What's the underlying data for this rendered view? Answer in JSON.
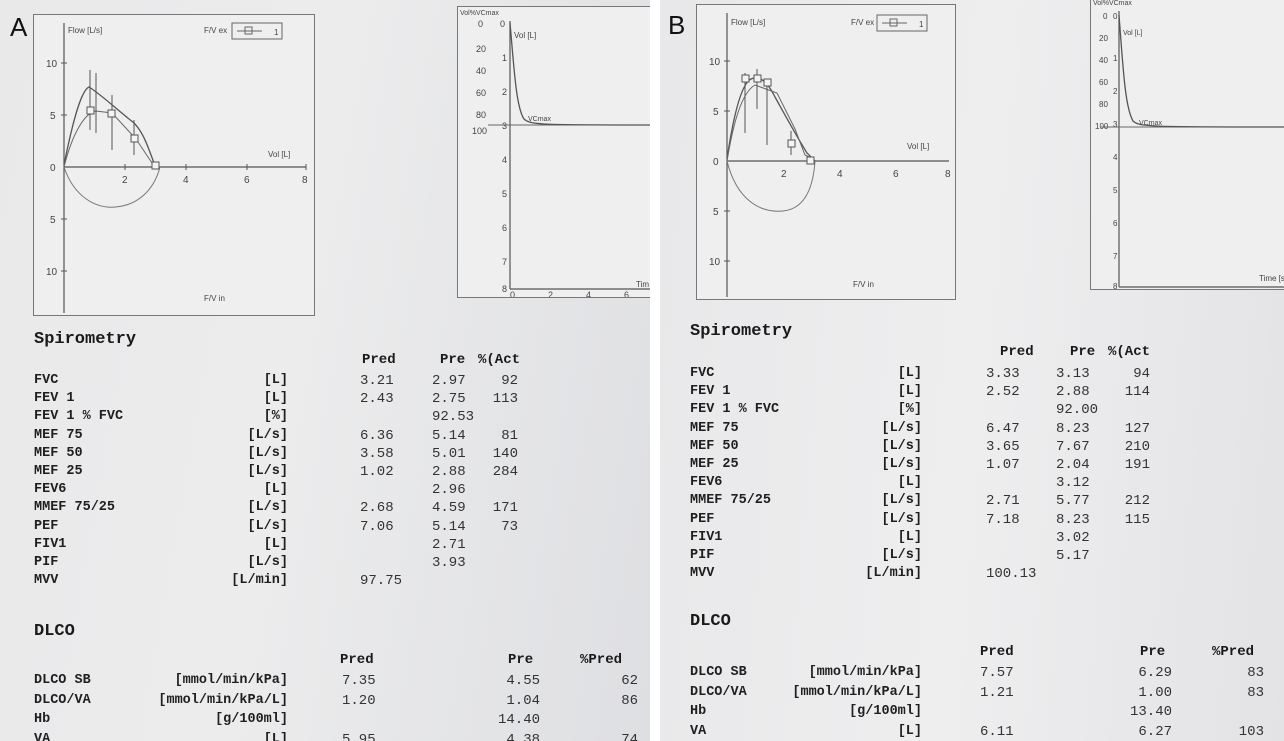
{
  "panels": [
    {
      "letter": "A",
      "chart_labels": {
        "flow": "Flow [L/s]",
        "legend": "F/V ex",
        "legend_series": "1",
        "vol": "Vol [L]",
        "fv_in": "F/V in",
        "volpct": "Vol%VCmax",
        "vol_right": "Vol [L]",
        "vcmax": "VCmax",
        "time": "Tim"
      },
      "fv_yticks": [
        "10",
        "5",
        "0",
        "5",
        "10"
      ],
      "fv_xticks": [
        "2",
        "4",
        "6",
        "8"
      ],
      "vt_pct_ticks": [
        "0",
        "20",
        "40",
        "60",
        "80",
        "100"
      ],
      "vt_vol_ticks": [
        "0",
        "1",
        "2",
        "3",
        "4",
        "5",
        "6",
        "7",
        "8"
      ],
      "vt_time_ticks": [
        "0",
        "2",
        "4",
        "6"
      ],
      "spiro": {
        "heading": "Spirometry",
        "headers": {
          "pred": "Pred",
          "pre": "Pre",
          "act": "%(Act"
        },
        "rows": [
          {
            "name": "FVC",
            "unit": "[L]",
            "pred": "3.21",
            "pre": "2.97",
            "act": "92"
          },
          {
            "name": "FEV 1",
            "unit": "[L]",
            "pred": "2.43",
            "pre": "2.75",
            "act": "113"
          },
          {
            "name": "FEV 1 % FVC",
            "unit": "[%]",
            "pred": "",
            "pre": "92.53",
            "act": ""
          },
          {
            "name": "MEF 75",
            "unit": "[L/s]",
            "pred": "6.36",
            "pre": "5.14",
            "act": "81"
          },
          {
            "name": "MEF 50",
            "unit": "[L/s]",
            "pred": "3.58",
            "pre": "5.01",
            "act": "140"
          },
          {
            "name": "MEF 25",
            "unit": "[L/s]",
            "pred": "1.02",
            "pre": "2.88",
            "act": "284"
          },
          {
            "name": "FEV6",
            "unit": "[L]",
            "pred": "",
            "pre": "2.96",
            "act": ""
          },
          {
            "name": "MMEF 75/25",
            "unit": "[L/s]",
            "pred": "2.68",
            "pre": "4.59",
            "act": "171"
          },
          {
            "name": "PEF",
            "unit": "[L/s]",
            "pred": "7.06",
            "pre": "5.14",
            "act": "73"
          },
          {
            "name": "FIV1",
            "unit": "[L]",
            "pred": "",
            "pre": "2.71",
            "act": ""
          },
          {
            "name": "PIF",
            "unit": "[L/s]",
            "pred": "",
            "pre": "3.93",
            "act": ""
          },
          {
            "name": "MVV",
            "unit": "[L/min]",
            "pred": "97.75",
            "pre": "",
            "act": ""
          }
        ]
      },
      "dlco": {
        "heading": "DLCO",
        "headers": {
          "pred": "Pred",
          "pre": "Pre",
          "pct": "%Pred"
        },
        "rows": [
          {
            "name": "DLCO SB",
            "unit": "[mmol/min/kPa]",
            "pred": "7.35",
            "pre": "4.55",
            "pct": "62"
          },
          {
            "name": "DLCO/VA",
            "unit": "[mmol/min/kPa/L]",
            "pred": "1.20",
            "pre": "1.04",
            "pct": "86"
          },
          {
            "name": "Hb",
            "unit": "[g/100ml]",
            "pred": "",
            "pre": "14.40",
            "pct": ""
          },
          {
            "name": "VA",
            "unit": "[L]",
            "pred": "5.95",
            "pre": "4.38",
            "pct": "74"
          }
        ]
      }
    },
    {
      "letter": "B",
      "chart_labels": {
        "flow": "Flow [L/s]",
        "legend": "F/V ex",
        "legend_series": "1",
        "vol": "Vol [L]",
        "fv_in": "F/V in",
        "volpct": "Vol%VCmax",
        "vol_right": "Vol [L]",
        "vcmax": "VCmax",
        "time": "Time [s"
      },
      "fv_yticks": [
        "10",
        "5",
        "0",
        "5",
        "10"
      ],
      "fv_xticks": [
        "2",
        "4",
        "6",
        "8"
      ],
      "vt_pct_ticks": [
        "0",
        "20",
        "40",
        "60",
        "80",
        "100"
      ],
      "vt_vol_ticks": [
        "0",
        "1",
        "2",
        "3",
        "4",
        "5",
        "6",
        "7",
        "8"
      ],
      "vt_time_ticks": [
        "0",
        "5"
      ],
      "spiro": {
        "heading": "Spirometry",
        "headers": {
          "pred": "Pred",
          "pre": "Pre",
          "act": "%(Act"
        },
        "rows": [
          {
            "name": "FVC",
            "unit": "[L]",
            "pred": "3.33",
            "pre": "3.13",
            "act": "94"
          },
          {
            "name": "FEV 1",
            "unit": "[L]",
            "pred": "2.52",
            "pre": "2.88",
            "act": "114"
          },
          {
            "name": "FEV 1 % FVC",
            "unit": "[%]",
            "pred": "",
            "pre": "92.00",
            "act": ""
          },
          {
            "name": "MEF 75",
            "unit": "[L/s]",
            "pred": "6.47",
            "pre": "8.23",
            "act": "127"
          },
          {
            "name": "MEF 50",
            "unit": "[L/s]",
            "pred": "3.65",
            "pre": "7.67",
            "act": "210"
          },
          {
            "name": "MEF 25",
            "unit": "[L/s]",
            "pred": "1.07",
            "pre": "2.04",
            "act": "191"
          },
          {
            "name": "FEV6",
            "unit": "[L]",
            "pred": "",
            "pre": "3.12",
            "act": ""
          },
          {
            "name": "MMEF 75/25",
            "unit": "[L/s]",
            "pred": "2.71",
            "pre": "5.77",
            "act": "212"
          },
          {
            "name": "PEF",
            "unit": "[L/s]",
            "pred": "7.18",
            "pre": "8.23",
            "act": "115"
          },
          {
            "name": "FIV1",
            "unit": "[L]",
            "pred": "",
            "pre": "3.02",
            "act": ""
          },
          {
            "name": "PIF",
            "unit": "[L/s]",
            "pred": "",
            "pre": "5.17",
            "act": ""
          },
          {
            "name": "MVV",
            "unit": "[L/min]",
            "pred": "100.13",
            "pre": "",
            "act": ""
          }
        ]
      },
      "dlco": {
        "heading": "DLCO",
        "headers": {
          "pred": "Pred",
          "pre": "Pre",
          "pct": "%Pred"
        },
        "rows": [
          {
            "name": "DLCO SB",
            "unit": "[mmol/min/kPa]",
            "pred": "7.57",
            "pre": "6.29",
            "pct": "83"
          },
          {
            "name": "DLCO/VA",
            "unit": "[mmol/min/kPa/L]",
            "pred": "1.21",
            "pre": "1.00",
            "pct": "83"
          },
          {
            "name": "Hb",
            "unit": "[g/100ml]",
            "pred": "",
            "pre": "13.40",
            "pct": ""
          },
          {
            "name": "VA",
            "unit": "[L]",
            "pred": "6.11",
            "pre": "6.27",
            "pct": "103"
          }
        ]
      }
    }
  ]
}
